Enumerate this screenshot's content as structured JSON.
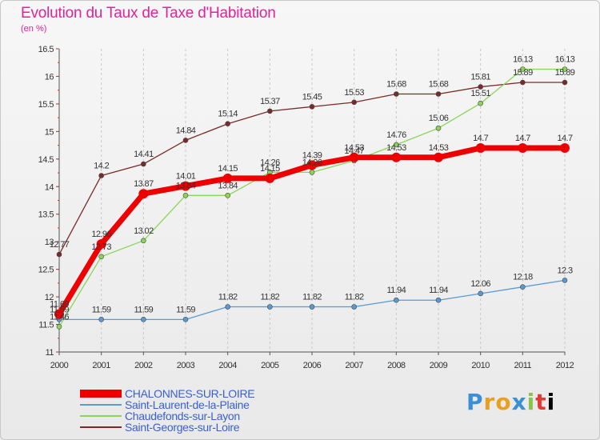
{
  "page": {
    "title": "Evolution du Taux de Taxe d'Habitation",
    "unit": "(en %)",
    "logo": "Proxiti"
  },
  "chart_data": {
    "type": "line",
    "title": "Evolution du Taux de Taxe d'Habitation",
    "ylabel": "(en %)",
    "xlabel": "",
    "x": [
      "2000",
      "2001",
      "2002",
      "2003",
      "2004",
      "2005",
      "2006",
      "2007",
      "2008",
      "2009",
      "2010",
      "2011",
      "2012"
    ],
    "ylim": [
      11,
      16.5
    ],
    "yticks": [
      "11",
      "11.5",
      "12",
      "12.5",
      "13",
      "13.5",
      "14",
      "14.5",
      "15",
      "15.5",
      "16",
      "16.5"
    ],
    "grid": "vertical dashed",
    "legend_position": "bottom-left",
    "series": [
      {
        "name": "CHALONNES-SUR-LOIRE",
        "color": "#ee0000",
        "style": "thick",
        "values": [
          11.69,
          12.96,
          13.87,
          14.01,
          14.15,
          14.15,
          14.39,
          14.53,
          14.53,
          14.53,
          14.7,
          14.7,
          14.7
        ],
        "labels": [
          "11.69",
          "12.96",
          "13.87",
          "14.01",
          "14.15",
          "14.15",
          "14.39",
          "14.53",
          "14.53",
          "14.53",
          "14.7",
          "14.7",
          "14.7"
        ]
      },
      {
        "name": "Saint-Laurent-de-la-Plaine",
        "color": "#5a9ad4",
        "style": "thin",
        "values": [
          11.59,
          11.59,
          11.59,
          11.59,
          11.82,
          11.82,
          11.82,
          11.82,
          11.94,
          11.94,
          12.06,
          12.18,
          12.3
        ],
        "labels": [
          "11.59",
          "11.59",
          "11.59",
          "11.59",
          "11.82",
          "11.82",
          "11.82",
          "11.82",
          "11.94",
          "11.94",
          "12.06",
          "12.18",
          "12.3"
        ]
      },
      {
        "name": "Chaudefonds-sur-Layon",
        "color": "#8ad45a",
        "style": "thin",
        "values": [
          11.46,
          12.73,
          13.02,
          13.84,
          13.84,
          14.26,
          14.26,
          14.47,
          14.76,
          15.06,
          15.51,
          16.13,
          16.13
        ],
        "labels": [
          "11.46",
          "12.73",
          "13.02",
          "13.84",
          "13.84",
          "14.26",
          "14.26",
          "14.47",
          "14.76",
          "15.06",
          "15.51",
          "16.13",
          "16.13"
        ]
      },
      {
        "name": "Saint-Georges-sur-Loire",
        "color": "#7a2a2a",
        "style": "thin",
        "values": [
          12.77,
          14.2,
          14.41,
          14.84,
          15.14,
          15.37,
          15.45,
          15.53,
          15.68,
          15.68,
          15.81,
          15.89,
          15.89
        ],
        "labels": [
          "12.77",
          "14.2",
          "14.41",
          "14.84",
          "15.14",
          "15.37",
          "15.45",
          "15.53",
          "15.68",
          "15.68",
          "15.81",
          "15.89",
          "15.89"
        ]
      }
    ]
  }
}
